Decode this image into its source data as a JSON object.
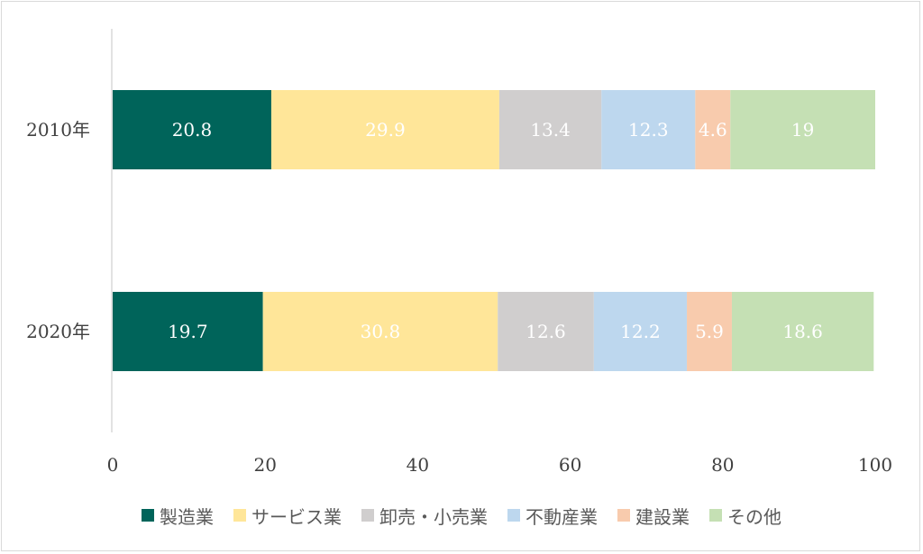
{
  "chart_data": {
    "type": "bar",
    "orientation": "horizontal",
    "stacked": true,
    "categories": [
      "2010年",
      "2020年"
    ],
    "series": [
      {
        "name": "製造業",
        "values": [
          20.8,
          19.7
        ],
        "color": "#00645a",
        "label_color": "#ffffff"
      },
      {
        "name": "サービス業",
        "values": [
          29.9,
          30.8
        ],
        "color": "#ffe699",
        "label_color": "#ffffff"
      },
      {
        "name": "卸売・小売業",
        "values": [
          13.4,
          12.6
        ],
        "color": "#d0cece",
        "label_color": "#ffffff"
      },
      {
        "name": "不動産業",
        "values": [
          12.3,
          12.2
        ],
        "color": "#bdd7ee",
        "label_color": "#ffffff"
      },
      {
        "name": "建設業",
        "values": [
          4.6,
          5.9
        ],
        "color": "#f8cbad",
        "label_color": "#ffffff"
      },
      {
        "name": "その他",
        "values": [
          19,
          18.6
        ],
        "color": "#c5e0b4",
        "label_color": "#ffffff"
      }
    ],
    "xlim": [
      0,
      100
    ],
    "xticks": [
      "0",
      "20",
      "40",
      "60",
      "80",
      "100"
    ],
    "grid": false,
    "legend_position": "bottom",
    "title": "",
    "xlabel": "",
    "ylabel": ""
  }
}
